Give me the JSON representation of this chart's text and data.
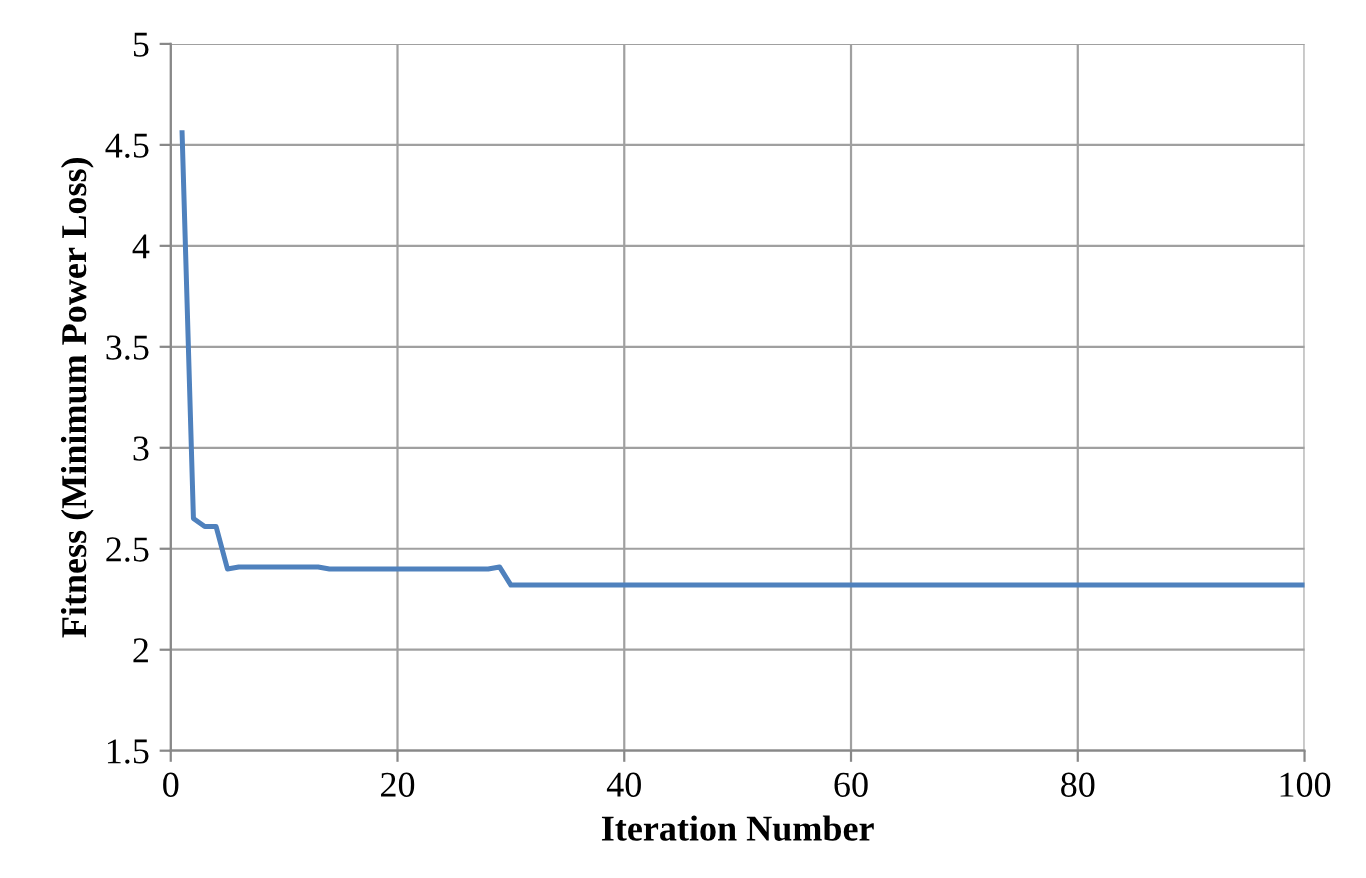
{
  "chart_data": {
    "type": "line",
    "xlabel": "Iteration Number",
    "ylabel": "Fitness (Minimum Power Loss)",
    "x": [
      1,
      2,
      3,
      4,
      5,
      6,
      10,
      13,
      14,
      20,
      28,
      29,
      30,
      31,
      40,
      60,
      80,
      100
    ],
    "series": [
      {
        "color": "#4f81bd",
        "values": [
          4.56,
          2.65,
          2.61,
          2.61,
          2.4,
          2.41,
          2.41,
          2.41,
          2.4,
          2.4,
          2.4,
          2.41,
          2.32,
          2.32,
          2.32,
          2.32,
          2.32,
          2.32
        ]
      }
    ],
    "xlim": [
      0,
      100
    ],
    "xticks": [
      0,
      20,
      40,
      60,
      80,
      100
    ],
    "ylim": [
      1.5,
      5
    ],
    "yticks": [
      1.5,
      2,
      2.5,
      3,
      3.5,
      4,
      4.5,
      5
    ],
    "grid": true,
    "legend": false,
    "marker": "none",
    "line_style": "solid"
  }
}
